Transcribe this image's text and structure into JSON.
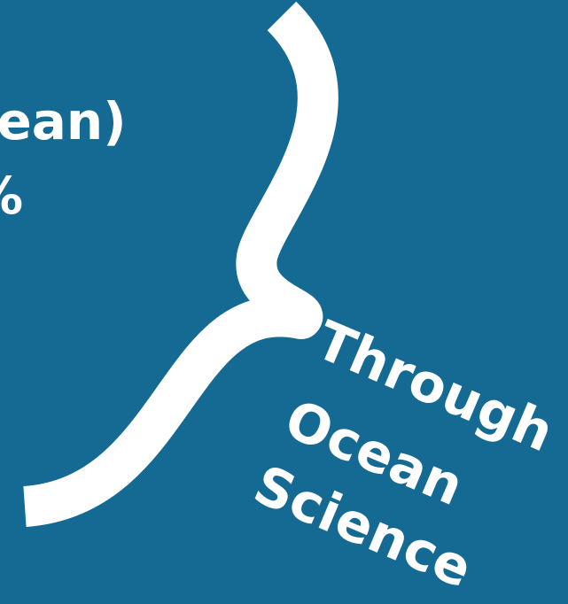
{
  "background_color": "#146a92",
  "foreground_color": "#ffffff",
  "cropped_text": {
    "line1": "cean)",
    "line2": "%"
  },
  "tagline": {
    "word1": "Through",
    "word2": "Ocean",
    "word3": "Science"
  },
  "graphic": {
    "icon": "curly-brace-icon"
  }
}
